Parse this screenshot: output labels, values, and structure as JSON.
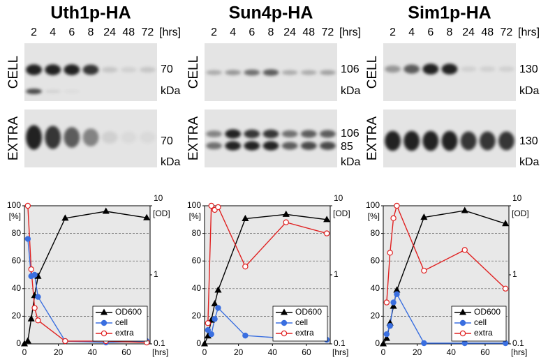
{
  "panels": [
    {
      "title": "Uth1p-HA",
      "lanes": [
        "2",
        "4",
        "6",
        "8",
        "24",
        "48",
        "72"
      ],
      "lane_unit": "[hrs]",
      "rows": [
        {
          "label": "CELL",
          "markers": [
            "70"
          ],
          "unit": "kDa"
        },
        {
          "label": "EXTRA",
          "markers": [
            "70"
          ],
          "unit": "kDa"
        }
      ]
    },
    {
      "title": "Sun4p-HA",
      "lanes": [
        "2",
        "4",
        "6",
        "8",
        "24",
        "48",
        "72"
      ],
      "lane_unit": "[hrs]",
      "rows": [
        {
          "label": "CELL",
          "markers": [
            "106"
          ],
          "unit": "kDa"
        },
        {
          "label": "EXTRA",
          "markers": [
            "106",
            "85"
          ],
          "unit": "kDa"
        }
      ]
    },
    {
      "title": "Sim1p-HA",
      "lanes": [
        "2",
        "4",
        "6",
        "8",
        "24",
        "48",
        "72"
      ],
      "lane_unit": "[hrs]",
      "rows": [
        {
          "label": "CELL",
          "markers": [
            "130"
          ],
          "unit": "kDa"
        },
        {
          "label": "EXTRA",
          "markers": [
            "130"
          ],
          "unit": "kDa"
        }
      ]
    }
  ],
  "chart_data": [
    {
      "type": "line",
      "xlim": [
        0,
        74
      ],
      "xticks": [
        0,
        20,
        40,
        60
      ],
      "xlabel": "[hrs]",
      "ylim": [
        0,
        100
      ],
      "yticks": [
        0,
        20,
        40,
        60,
        80,
        100
      ],
      "ylabel": "[%]",
      "y2lim": [
        0.1,
        10
      ],
      "y2ticks": [
        0.1,
        1,
        10
      ],
      "y2label": "[OD]",
      "y2log": true,
      "grid": true,
      "legend": "lower right",
      "series": [
        {
          "name": "OD600",
          "color": "#000000",
          "marker": "triangle",
          "filled": true,
          "axis": "y2",
          "x": [
            0,
            2,
            4,
            6,
            8,
            24,
            48,
            72
          ],
          "values": [
            0.1,
            0.11,
            0.23,
            0.5,
            0.95,
            6.6,
            8.3,
            6.7
          ]
        },
        {
          "name": "cell",
          "color": "#3a6fe0",
          "marker": "circle",
          "filled": true,
          "x": [
            2,
            4,
            6,
            8,
            24,
            48,
            72
          ],
          "values": [
            76,
            49,
            50,
            34,
            2,
            1,
            2
          ]
        },
        {
          "name": "extra",
          "color": "#e02020",
          "marker": "circle",
          "filled": false,
          "x": [
            2,
            4,
            6,
            8,
            24,
            48,
            72
          ],
          "values": [
            100,
            54,
            26,
            17,
            2,
            2,
            1
          ]
        }
      ]
    },
    {
      "type": "line",
      "xlim": [
        0,
        74
      ],
      "xticks": [
        0,
        20,
        40,
        60
      ],
      "xlabel": "[hrs]",
      "ylim": [
        0,
        100
      ],
      "yticks": [
        0,
        20,
        40,
        60,
        80,
        100
      ],
      "ylabel": "[%]",
      "y2lim": [
        0.1,
        10
      ],
      "y2ticks": [
        0.1,
        1,
        10
      ],
      "y2label": "[OD]",
      "y2log": true,
      "grid": true,
      "legend": "lower right",
      "series": [
        {
          "name": "OD600",
          "color": "#000000",
          "marker": "triangle",
          "filled": true,
          "axis": "y2",
          "x": [
            0,
            2,
            4,
            6,
            8,
            24,
            48,
            72
          ],
          "values": [
            0.1,
            0.13,
            0.22,
            0.38,
            0.6,
            6.5,
            7.5,
            6.3
          ]
        },
        {
          "name": "cell",
          "color": "#3a6fe0",
          "marker": "circle",
          "filled": true,
          "x": [
            2,
            4,
            6,
            8,
            24,
            48,
            72
          ],
          "values": [
            10,
            7,
            18,
            26,
            6,
            4,
            3
          ]
        },
        {
          "name": "extra",
          "color": "#e02020",
          "marker": "circle",
          "filled": false,
          "x": [
            2,
            4,
            6,
            8,
            24,
            48,
            72
          ],
          "values": [
            15,
            100,
            97,
            99,
            56,
            88,
            80
          ]
        }
      ]
    },
    {
      "type": "line",
      "xlim": [
        0,
        74
      ],
      "xticks": [
        0,
        20,
        40,
        60
      ],
      "xlabel": "[hrs]",
      "ylim": [
        0,
        100
      ],
      "yticks": [
        0,
        20,
        40,
        60,
        80,
        100
      ],
      "ylabel": "[%]",
      "y2lim": [
        0.1,
        10
      ],
      "y2ticks": [
        0.1,
        1,
        10
      ],
      "y2label": "[OD]",
      "y2log": true,
      "grid": true,
      "legend": "lower right",
      "series": [
        {
          "name": "OD600",
          "color": "#000000",
          "marker": "triangle",
          "filled": true,
          "axis": "y2",
          "x": [
            0,
            2,
            4,
            6,
            8,
            24,
            48,
            72
          ],
          "values": [
            0.1,
            0.12,
            0.2,
            0.35,
            0.6,
            6.8,
            8.5,
            5.5
          ]
        },
        {
          "name": "cell",
          "color": "#3a6fe0",
          "marker": "circle",
          "filled": true,
          "x": [
            2,
            4,
            6,
            8,
            24,
            48,
            72
          ],
          "values": [
            7,
            13,
            30,
            36,
            0.5,
            0.5,
            0.5
          ]
        },
        {
          "name": "extra",
          "color": "#e02020",
          "marker": "circle",
          "filled": false,
          "x": [
            2,
            4,
            6,
            8,
            24,
            48,
            72
          ],
          "values": [
            30,
            66,
            91,
            100,
            53,
            68,
            40
          ]
        }
      ]
    }
  ]
}
